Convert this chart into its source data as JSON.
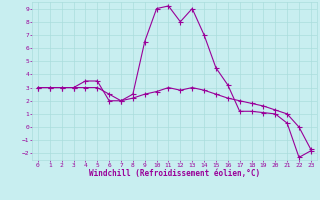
{
  "title": "",
  "xlabel": "Windchill (Refroidissement éolien,°C)",
  "ylabel": "",
  "bg_color": "#c8eef0",
  "line_color": "#990099",
  "grid_color": "#aadddd",
  "xlim": [
    -0.5,
    23.5
  ],
  "ylim": [
    -2.5,
    9.5
  ],
  "xticks": [
    0,
    1,
    2,
    3,
    4,
    5,
    6,
    7,
    8,
    9,
    10,
    11,
    12,
    13,
    14,
    15,
    16,
    17,
    18,
    19,
    20,
    21,
    22,
    23
  ],
  "yticks": [
    -2,
    -1,
    0,
    1,
    2,
    3,
    4,
    5,
    6,
    7,
    8,
    9
  ],
  "line1_x": [
    0,
    1,
    2,
    3,
    4,
    5,
    6,
    7,
    8,
    9,
    10,
    11,
    12,
    13,
    14,
    15,
    16,
    17,
    18,
    19,
    20,
    21,
    22,
    23
  ],
  "line1_y": [
    3.0,
    3.0,
    3.0,
    3.0,
    3.5,
    3.5,
    2.0,
    2.0,
    2.5,
    6.5,
    9.0,
    9.2,
    8.0,
    9.0,
    7.0,
    4.5,
    3.2,
    1.2,
    1.2,
    1.1,
    1.0,
    0.3,
    -2.3,
    -1.8
  ],
  "line2_x": [
    0,
    1,
    2,
    3,
    4,
    5,
    6,
    7,
    8,
    9,
    10,
    11,
    12,
    13,
    14,
    15,
    16,
    17,
    18,
    19,
    20,
    21,
    22,
    23
  ],
  "line2_y": [
    3.0,
    3.0,
    3.0,
    3.0,
    3.0,
    3.0,
    2.5,
    2.0,
    2.2,
    2.5,
    2.7,
    3.0,
    2.8,
    3.0,
    2.8,
    2.5,
    2.2,
    2.0,
    1.8,
    1.6,
    1.3,
    1.0,
    0.0,
    -1.7
  ],
  "tick_fontsize": 4.5,
  "xlabel_fontsize": 5.5,
  "linewidth": 0.8,
  "markersize": 1.8
}
